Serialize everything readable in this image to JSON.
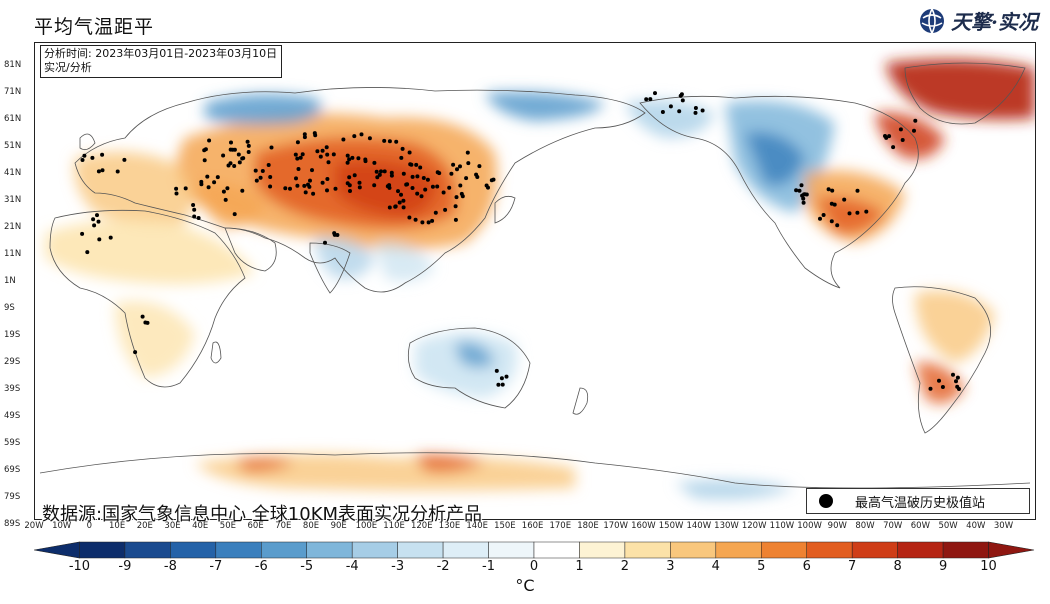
{
  "title": "平均气温距平",
  "brand": {
    "name": "天擎·实况",
    "icon": "globe-logo-icon"
  },
  "info": {
    "period": "分析时间: 2023年03月01日-2023年03月10日",
    "type": "实况/分析"
  },
  "source": "数据源:国家气象信息中心 全球10KM表面实况分析产品",
  "legend": {
    "label": "最高气温破历史极值站",
    "marker": "black-dot"
  },
  "lat_labels": [
    "81N",
    "71N",
    "61N",
    "51N",
    "41N",
    "31N",
    "21N",
    "11N",
    "1N",
    "9S",
    "19S",
    "29S",
    "39S",
    "49S",
    "59S",
    "69S",
    "79S",
    "89S"
  ],
  "lon_labels": [
    "20W",
    "10W",
    "0",
    "10E",
    "20E",
    "30E",
    "40E",
    "50E",
    "60E",
    "70E",
    "80E",
    "90E",
    "100E",
    "110E",
    "120E",
    "130E",
    "140E",
    "150E",
    "160E",
    "170E",
    "180E",
    "170W",
    "160W",
    "150W",
    "140W",
    "130W",
    "120W",
    "110W",
    "100W",
    "90W",
    "80W",
    "70W",
    "60W",
    "50W",
    "40W",
    "30W"
  ],
  "colorbar": {
    "unit": "°C",
    "ticks": [
      "-10",
      "-9",
      "-8",
      "-7",
      "-6",
      "-5",
      "-4",
      "-3",
      "-2",
      "-1",
      "0",
      "1",
      "2",
      "3",
      "4",
      "5",
      "6",
      "7",
      "8",
      "9",
      "10"
    ],
    "colors": [
      "#0d2d6b",
      "#1a4a8f",
      "#2462a8",
      "#3a7fbd",
      "#5a9ccc",
      "#7fb6da",
      "#a6cde6",
      "#c7e1f0",
      "#deeef7",
      "#eef6fa",
      "#ffffff",
      "#fdf3d4",
      "#fce2a8",
      "#f9c77d",
      "#f5a651",
      "#ee8232",
      "#e25d20",
      "#cf3d17",
      "#b52413",
      "#8f1711"
    ]
  }
}
